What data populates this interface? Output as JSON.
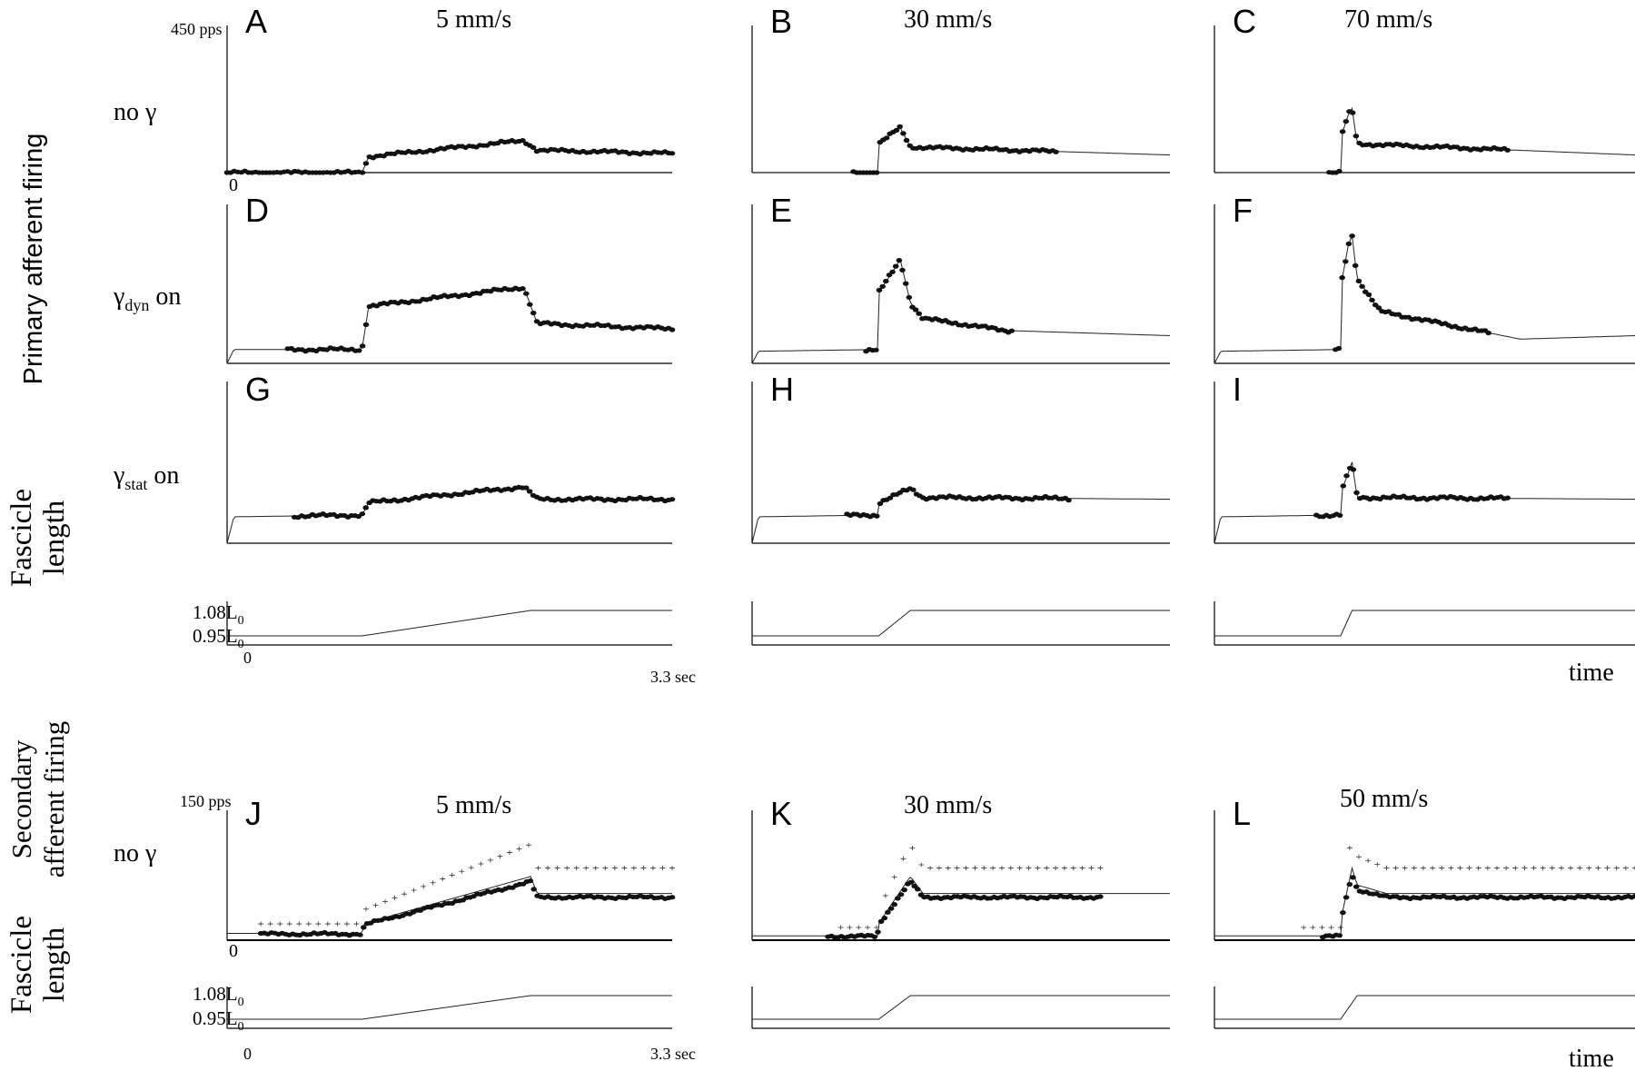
{
  "labels": {
    "primary_afferent": "Primary afferent firing",
    "secondary_afferent_line1": "Secondary",
    "secondary_afferent_line2": "afferent firing",
    "fascicle_line1": "Fascicle",
    "fascicle_line2": "length",
    "no_gamma": "no γ",
    "gamma_dyn_base": "γ",
    "gamma_dyn_sub": "dyn",
    "gamma_stat_base": "γ",
    "gamma_stat_sub": "stat",
    "on_suffix": " on",
    "y_top_primary": "450 pps",
    "y_top_secondary": "150 pps",
    "y_zero": "0",
    "len_top_base": "1.08L",
    "len_bot_base": "0.95L",
    "len_sub": "0",
    "x_end": "3.3 sec",
    "time": "time"
  },
  "panels": [
    {
      "letter": "A",
      "speed": "5 mm/s"
    },
    {
      "letter": "B",
      "speed": "30 mm/s"
    },
    {
      "letter": "C",
      "speed": "70 mm/s"
    },
    {
      "letter": "D",
      "speed": ""
    },
    {
      "letter": "E",
      "speed": ""
    },
    {
      "letter": "F",
      "speed": ""
    },
    {
      "letter": "G",
      "speed": ""
    },
    {
      "letter": "H",
      "speed": ""
    },
    {
      "letter": "I",
      "speed": ""
    },
    {
      "letter": "J",
      "speed": "5 mm/s"
    },
    {
      "letter": "K",
      "speed": "30 mm/s"
    },
    {
      "letter": "L",
      "speed": "50 mm/s"
    }
  ],
  "chart_data": {
    "type": "line",
    "x_unit": "sec",
    "xlim": [
      0,
      3.3
    ],
    "primary_ylim": [
      0,
      450
    ],
    "secondary_ylim": [
      0,
      150
    ],
    "primary_length_ticks": [
      "0.95L0",
      "1.08L0"
    ],
    "stretch": [
      {
        "speed": "5 mm/s",
        "ramp_start": 1.0,
        "ramp_end": 2.25
      },
      {
        "speed": "30 mm/s",
        "ramp_start": 1.0,
        "ramp_end": 1.25
      },
      {
        "speed": "70 mm/s",
        "ramp_start": 0.99,
        "ramp_end": 1.08
      },
      {
        "speed": "50 mm/s",
        "ramp_start": 0.99,
        "ramp_end": 1.12
      }
    ],
    "series": [
      {
        "panel": "A",
        "condition": "no γ",
        "model": [
          [
            0,
            0
          ],
          [
            1.0,
            0
          ],
          [
            1.05,
            50
          ],
          [
            2.2,
            100
          ],
          [
            2.3,
            70
          ],
          [
            3.3,
            60
          ]
        ],
        "data_range": [
          0,
          3.3
        ]
      },
      {
        "panel": "B",
        "condition": "no γ",
        "model": [
          [
            0,
            0
          ],
          [
            0.99,
            0
          ],
          [
            1.0,
            90
          ],
          [
            1.1,
            120
          ],
          [
            1.17,
            140
          ],
          [
            1.25,
            80
          ],
          [
            3.3,
            55
          ]
        ],
        "data_range": [
          0.8,
          2.4
        ]
      },
      {
        "panel": "C",
        "condition": "no γ",
        "model": [
          [
            0,
            0
          ],
          [
            0.99,
            0
          ],
          [
            1.0,
            120
          ],
          [
            1.05,
            180
          ],
          [
            1.08,
            200
          ],
          [
            1.12,
            90
          ],
          [
            3.3,
            55
          ]
        ],
        "data_range": [
          0.9,
          2.3
        ]
      },
      {
        "panel": "D",
        "condition": "γdyn on",
        "model": [
          [
            0,
            0
          ],
          [
            0.05,
            40
          ],
          [
            1.0,
            40
          ],
          [
            1.05,
            165
          ],
          [
            2.2,
            220
          ],
          [
            2.3,
            115
          ],
          [
            3.3,
            100
          ]
        ],
        "data_range": [
          0.45,
          3.3
        ]
      },
      {
        "panel": "E",
        "condition": "γdyn on",
        "model": [
          [
            0,
            0
          ],
          [
            0.05,
            35
          ],
          [
            0.99,
            40
          ],
          [
            1.0,
            205
          ],
          [
            1.12,
            270
          ],
          [
            1.17,
            300
          ],
          [
            1.25,
            175
          ],
          [
            1.35,
            130
          ],
          [
            2.0,
            95
          ],
          [
            3.3,
            80
          ]
        ],
        "data_range": [
          0.9,
          2.05
        ]
      },
      {
        "panel": "F",
        "condition": "γdyn on",
        "model": [
          [
            0,
            0
          ],
          [
            0.05,
            35
          ],
          [
            0.99,
            40
          ],
          [
            1.0,
            240
          ],
          [
            1.05,
            340
          ],
          [
            1.08,
            370
          ],
          [
            1.12,
            245
          ],
          [
            1.3,
            150
          ],
          [
            2.4,
            70
          ],
          [
            3.3,
            80
          ]
        ],
        "data_range": [
          0.95,
          2.15
        ]
      },
      {
        "panel": "G",
        "condition": "γstat on",
        "model": [
          [
            0,
            0
          ],
          [
            0.05,
            75
          ],
          [
            1.0,
            80
          ],
          [
            1.05,
            115
          ],
          [
            2.2,
            160
          ],
          [
            2.3,
            125
          ],
          [
            3.3,
            125
          ]
        ],
        "data_range": [
          0.5,
          3.3
        ]
      },
      {
        "panel": "H",
        "condition": "γstat on",
        "model": [
          [
            0,
            0
          ],
          [
            0.05,
            75
          ],
          [
            0.99,
            80
          ],
          [
            1.0,
            115
          ],
          [
            1.25,
            155
          ],
          [
            1.35,
            130
          ],
          [
            3.3,
            125
          ]
        ],
        "data_range": [
          0.75,
          2.5
        ]
      },
      {
        "panel": "I",
        "condition": "γstat on",
        "model": [
          [
            0,
            0
          ],
          [
            0.05,
            75
          ],
          [
            0.99,
            80
          ],
          [
            1.0,
            150
          ],
          [
            1.08,
            230
          ],
          [
            1.12,
            130
          ],
          [
            3.3,
            125
          ]
        ],
        "data_range": [
          0.8,
          2.3
        ]
      },
      {
        "panel": "J",
        "condition": "no γ",
        "model": [
          [
            0,
            8
          ],
          [
            1.0,
            8
          ],
          [
            1.02,
            20
          ],
          [
            2.25,
            75
          ],
          [
            2.3,
            55
          ],
          [
            3.3,
            55
          ]
        ],
        "data_range": [
          0.25,
          3.3
        ],
        "crosses_range": [
          0.25,
          3.3
        ]
      },
      {
        "panel": "K",
        "condition": "no γ",
        "model": [
          [
            0,
            5
          ],
          [
            0.99,
            5
          ],
          [
            1.0,
            20
          ],
          [
            1.25,
            75
          ],
          [
            1.35,
            55
          ],
          [
            3.3,
            55
          ]
        ],
        "data_range": [
          0.6,
          2.75
        ],
        "crosses_range": [
          0.7,
          2.75
        ]
      },
      {
        "panel": "L",
        "condition": "no γ",
        "model": [
          [
            0,
            5
          ],
          [
            0.99,
            5
          ],
          [
            1.0,
            30
          ],
          [
            1.08,
            85
          ],
          [
            1.12,
            65
          ],
          [
            1.35,
            55
          ],
          [
            3.3,
            55
          ]
        ],
        "data_range": [
          0.85,
          3.3
        ],
        "crosses_range": [
          0.7,
          3.3
        ]
      }
    ]
  }
}
